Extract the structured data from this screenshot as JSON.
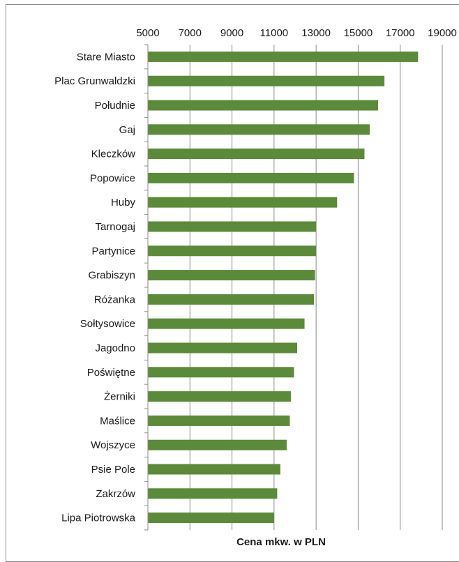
{
  "chart_data": {
    "type": "bar",
    "orientation": "horizontal",
    "title": "",
    "xlabel": "Cena mkw. w PLN",
    "ylabel": "",
    "xlim": [
      5000,
      19000
    ],
    "xticks": [
      5000,
      7000,
      9000,
      11000,
      13000,
      15000,
      17000,
      19000
    ],
    "tick_labels": [
      "5000",
      "7000",
      "9000",
      "11000",
      "13000",
      "15000",
      "17000",
      "19000"
    ],
    "axis_position": "top",
    "grid": "vertical",
    "legend": "none",
    "bar_color": "#5b8a3a",
    "categories": [
      "Stare Miasto",
      "Plac Grunwaldzki",
      "Południe",
      "Gaj",
      "Kleczków",
      "Popowice",
      "Huby",
      "Tarnogaj",
      "Partynice",
      "Grabiszyn",
      "Różanka",
      "Sołtysowice",
      "Jagodno",
      "Poświętne",
      "Żerniki",
      "Maślice",
      "Wojszyce",
      "Psie Pole",
      "Zakrzów",
      "Lipa Piotrowska"
    ],
    "values": [
      17850,
      16250,
      15950,
      15550,
      15300,
      14800,
      14000,
      13000,
      13000,
      12950,
      12900,
      12450,
      12100,
      11950,
      11800,
      11750,
      11600,
      11300,
      11150,
      11000
    ]
  }
}
